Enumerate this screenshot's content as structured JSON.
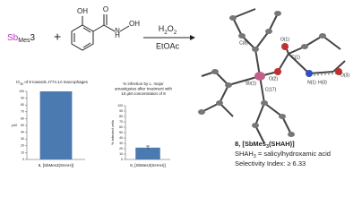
{
  "scheme": {
    "reagent": [
      "Sb",
      "Mes",
      "3"
    ],
    "plus": "+",
    "molecule_labels": [
      "OH",
      "O",
      "H",
      "N",
      "OH"
    ],
    "oxidant": [
      "H",
      "2",
      "O",
      "2"
    ],
    "solvent": "EtOAc"
  },
  "chart_data": [
    {
      "type": "bar",
      "title": [
        "IC",
        "50",
        " of 8 towards J774.1A macrophages"
      ],
      "ylabel": "μM",
      "categories": [
        "8, [SbMes3(SHAH)]"
      ],
      "values": [
        100
      ],
      "color": "#4a7ab0",
      "ylim": [
        0,
        100
      ],
      "yticks": [
        0,
        10,
        20,
        30,
        40,
        50,
        60,
        70,
        80,
        90,
        100
      ],
      "grid": false
    },
    {
      "type": "bar",
      "title": [
        "% infection by L. major",
        "amastigotes after treatment with",
        "10 μM concentration of 8"
      ],
      "ylabel": "% infected cells",
      "categories": [
        "8, [SbMes3(SHAH)]"
      ],
      "values": [
        22
      ],
      "errors": [
        3
      ],
      "color": "#4a7ab0",
      "ylim": [
        0,
        100
      ],
      "yticks": [
        0,
        10,
        20,
        30,
        40,
        50,
        60,
        70,
        80,
        90,
        100
      ],
      "grid": false
    }
  ],
  "structure": {
    "atom_labels": [
      "C(8)",
      "O(1)",
      "C(1)",
      "O(2)",
      "N(1)",
      "O(3)",
      "H(3)",
      "Sb(1)",
      "C(17)"
    ]
  },
  "caption": {
    "compound": [
      "8, [SbMes",
      "3",
      "(SHAH)]"
    ],
    "definition": [
      "SHAH",
      "3",
      " = salicylhydroxamic acid"
    ],
    "selectivity": "Selectivity Index: ≥ 6.33"
  }
}
